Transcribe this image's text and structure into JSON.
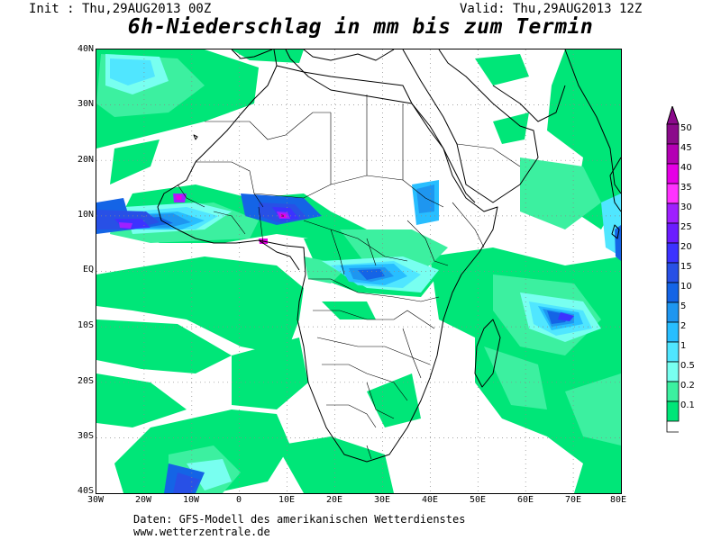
{
  "header": {
    "init": "Init : Thu,29AUG2013 00Z",
    "valid": "Valid: Thu,29AUG2013 12Z",
    "title": "6h-Niederschlag in mm bis zum Termin"
  },
  "axes": {
    "lat_labels": [
      "40N",
      "30N",
      "20N",
      "10N",
      "EQ",
      "10S",
      "20S",
      "30S",
      "40S"
    ],
    "lon_labels": [
      "30W",
      "20W",
      "10W",
      "0",
      "10E",
      "20E",
      "30E",
      "40E",
      "50E",
      "60E",
      "70E",
      "80E"
    ]
  },
  "legend": {
    "labels": [
      "50",
      "45",
      "40",
      "35",
      "30",
      "25",
      "20",
      "15",
      "10",
      "5",
      "2",
      "1",
      "0.5",
      "0.2",
      "0.1"
    ],
    "colors": [
      "#8b0a8b",
      "#b400b4",
      "#e600e6",
      "#ff32ff",
      "#9f20ff",
      "#6b1cff",
      "#3c32ff",
      "#2850e6",
      "#1464e6",
      "#1e96f0",
      "#28beff",
      "#50e6ff",
      "#78fff0",
      "#3cf0a0",
      "#00e678"
    ]
  },
  "footer": {
    "source": "Daten: GFS-Modell des amerikanischen Wetterdienstes",
    "website": "www.wetterzentrale.de"
  },
  "map": {
    "region": "Africa",
    "extent": {
      "lon": [
        -30,
        80
      ],
      "lat": [
        -40,
        40
      ]
    },
    "precip_colors": {
      "c01": "#00e678",
      "c02": "#3cf0a0",
      "c05": "#78fff0",
      "c1": "#50e6ff",
      "c2": "#28beff",
      "c5": "#1e96f0",
      "c10": "#1464e6",
      "c15": "#2850e6",
      "c20": "#3c32ff",
      "c30": "#9f20ff",
      "c40": "#e600e6",
      "c50": "#8b0a8b"
    }
  }
}
